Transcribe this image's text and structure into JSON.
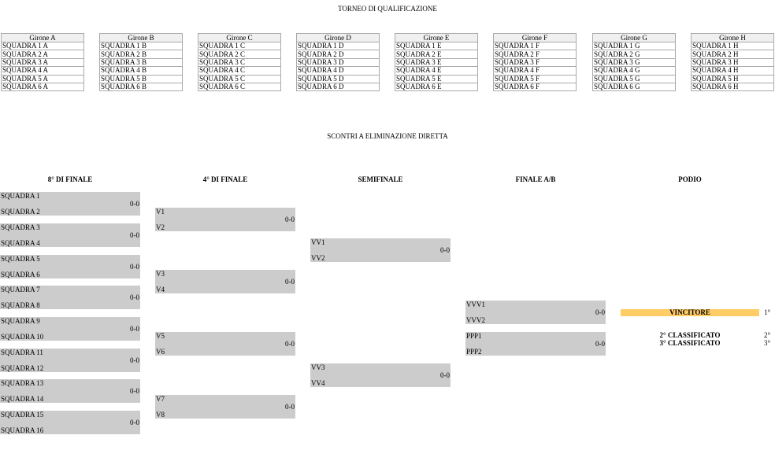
{
  "title": "TORNEO DI QUALIFICAZIONE",
  "groups": [
    {
      "name": "Girone A",
      "teams": [
        "SQUADRA 1 A",
        "SQUADRA 2 A",
        "SQUADRA 3 A",
        "SQUADRA 4 A",
        "SQUADRA 5 A",
        "SQUADRA 6 A"
      ]
    },
    {
      "name": "Girone B",
      "teams": [
        "SQUADRA 1 B",
        "SQUADRA 2 B",
        "SQUADRA 3 B",
        "SQUADRA 4 B",
        "SQUADRA 5 B",
        "SQUADRA 6 B"
      ]
    },
    {
      "name": "Girone C",
      "teams": [
        "SQUADRA 1 C",
        "SQUADRA 2 C",
        "SQUADRA 3 C",
        "SQUADRA 4 C",
        "SQUADRA 5 C",
        "SQUADRA 6 C"
      ]
    },
    {
      "name": "Girone D",
      "teams": [
        "SQUADRA 1 D",
        "SQUADRA 2 D",
        "SQUADRA 3 D",
        "SQUADRA 4 D",
        "SQUADRA 5 D",
        "SQUADRA 6 D"
      ]
    },
    {
      "name": "Girone E",
      "teams": [
        "SQUADRA 1 E",
        "SQUADRA 2 E",
        "SQUADRA 3 E",
        "SQUADRA 4 E",
        "SQUADRA 5 E",
        "SQUADRA 6 E"
      ]
    },
    {
      "name": "Girone F",
      "teams": [
        "SQUADRA 1 F",
        "SQUADRA 2 F",
        "SQUADRA 3 F",
        "SQUADRA 4 F",
        "SQUADRA 5 F",
        "SQUADRA 6 F"
      ]
    },
    {
      "name": "Girone G",
      "teams": [
        "SQUADRA 1 G",
        "SQUADRA 2 G",
        "SQUADRA 3 G",
        "SQUADRA 4 G",
        "SQUADRA 5 G",
        "SQUADRA 6 G"
      ]
    },
    {
      "name": "Girone H",
      "teams": [
        "SQUADRA 1 H",
        "SQUADRA 2 H",
        "SQUADRA 3 H",
        "SQUADRA 4 H",
        "SQUADRA 5 H",
        "SQUADRA 6 H"
      ]
    }
  ],
  "knockout_title": "SCONTRI A ELIMINAZIONE DIRETTA",
  "rounds": [
    {
      "label": "8° DI FINALE",
      "matches": [
        [
          "SQUADRA 1",
          "SQUADRA 2",
          "0-0"
        ],
        [
          "SQUADRA 3",
          "SQUADRA 4",
          "0-0"
        ],
        [
          "SQUADRA 5",
          "SQUADRA 6",
          "0-0"
        ],
        [
          "SQUADRA 7",
          "SQUADRA 8",
          "0-0"
        ],
        [
          "SQUADRA 9",
          "SQUADRA 10",
          "0-0"
        ],
        [
          "SQUADRA 11",
          "SQUADRA 12",
          "0-0"
        ],
        [
          "SQUADRA 13",
          "SQUADRA 14",
          "0-0"
        ],
        [
          "SQUADRA 15",
          "SQUADRA 16",
          "0-0"
        ]
      ]
    },
    {
      "label": "4° DI FINALE",
      "matches": [
        [
          "V1",
          "V2",
          "0-0"
        ],
        [
          "V3",
          "V4",
          "0-0"
        ],
        [
          "V5",
          "V6",
          "0-0"
        ],
        [
          "V7",
          "V8",
          "0-0"
        ]
      ]
    },
    {
      "label": "SEMIFINALE",
      "matches": [
        [
          "VV1",
          "VV2",
          "0-0"
        ],
        [
          "VV3",
          "VV4",
          "0-0"
        ]
      ]
    },
    {
      "label": "FINALE A/B",
      "matches": [
        [
          "VVV1",
          "VVV2",
          "0-0"
        ],
        [
          "PPP1",
          "PPP2",
          "0-0"
        ]
      ]
    }
  ],
  "podium": {
    "label": "PODIO",
    "winner": "VINCITORE",
    "first": "1°",
    "second_label": "2° CLASSIFICATO",
    "second": "2°",
    "third_label": "3° CLASSIFICATO",
    "third": "3°",
    "winner_color": "#ffcc66"
  }
}
